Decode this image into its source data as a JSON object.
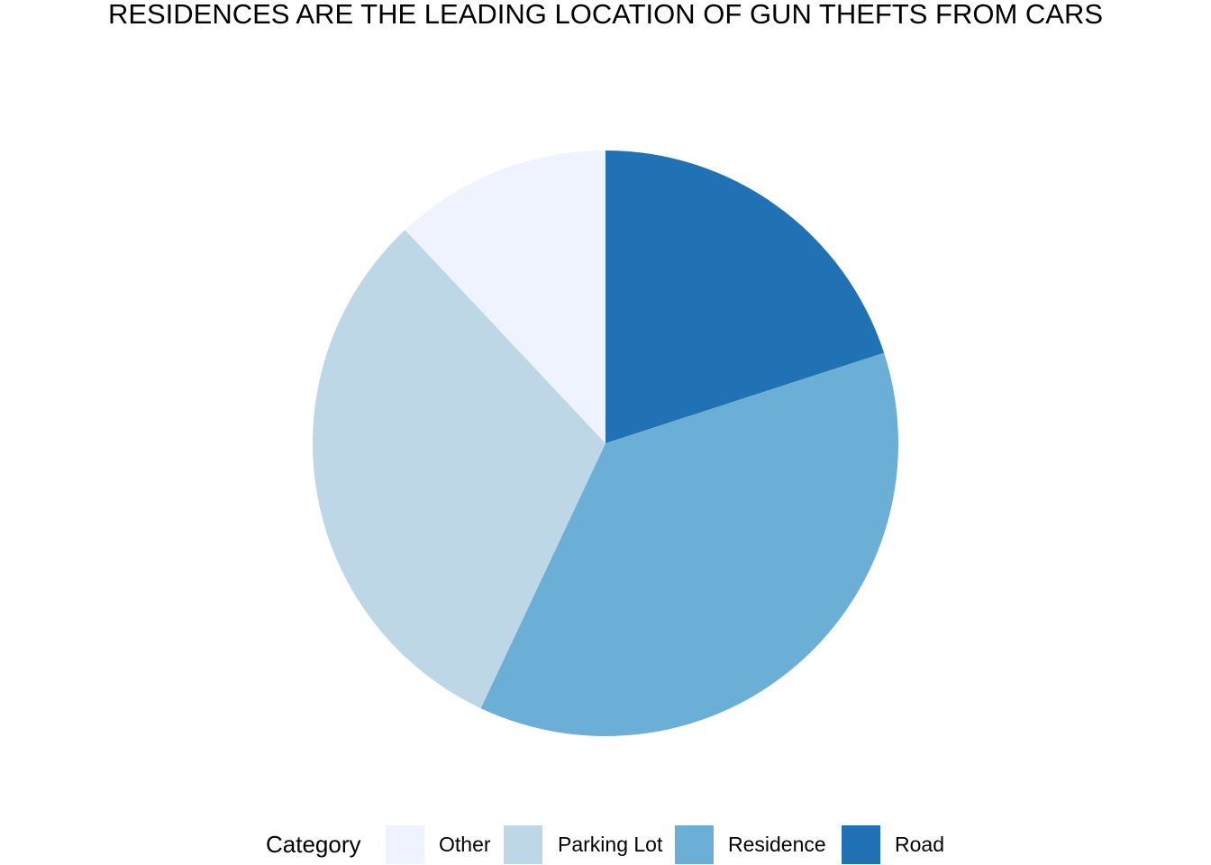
{
  "chart_data": {
    "type": "pie",
    "title": "RESIDENCES ARE THE LEADING LOCATION OF GUN THEFTS FROM CARS",
    "legend_title": "Category",
    "legend_position": "bottom",
    "start": "top, clockwise",
    "slices": [
      {
        "label": "Road",
        "value": 20.0,
        "color": "#2171B5"
      },
      {
        "label": "Residence",
        "value": 37.0,
        "color": "#6BAED6"
      },
      {
        "label": "Parking Lot",
        "value": 31.0,
        "color": "#BDD7E7"
      },
      {
        "label": "Other",
        "value": 12.0,
        "color": "#EFF3FF"
      }
    ],
    "legend_order": [
      "Other",
      "Parking Lot",
      "Residence",
      "Road"
    ]
  }
}
